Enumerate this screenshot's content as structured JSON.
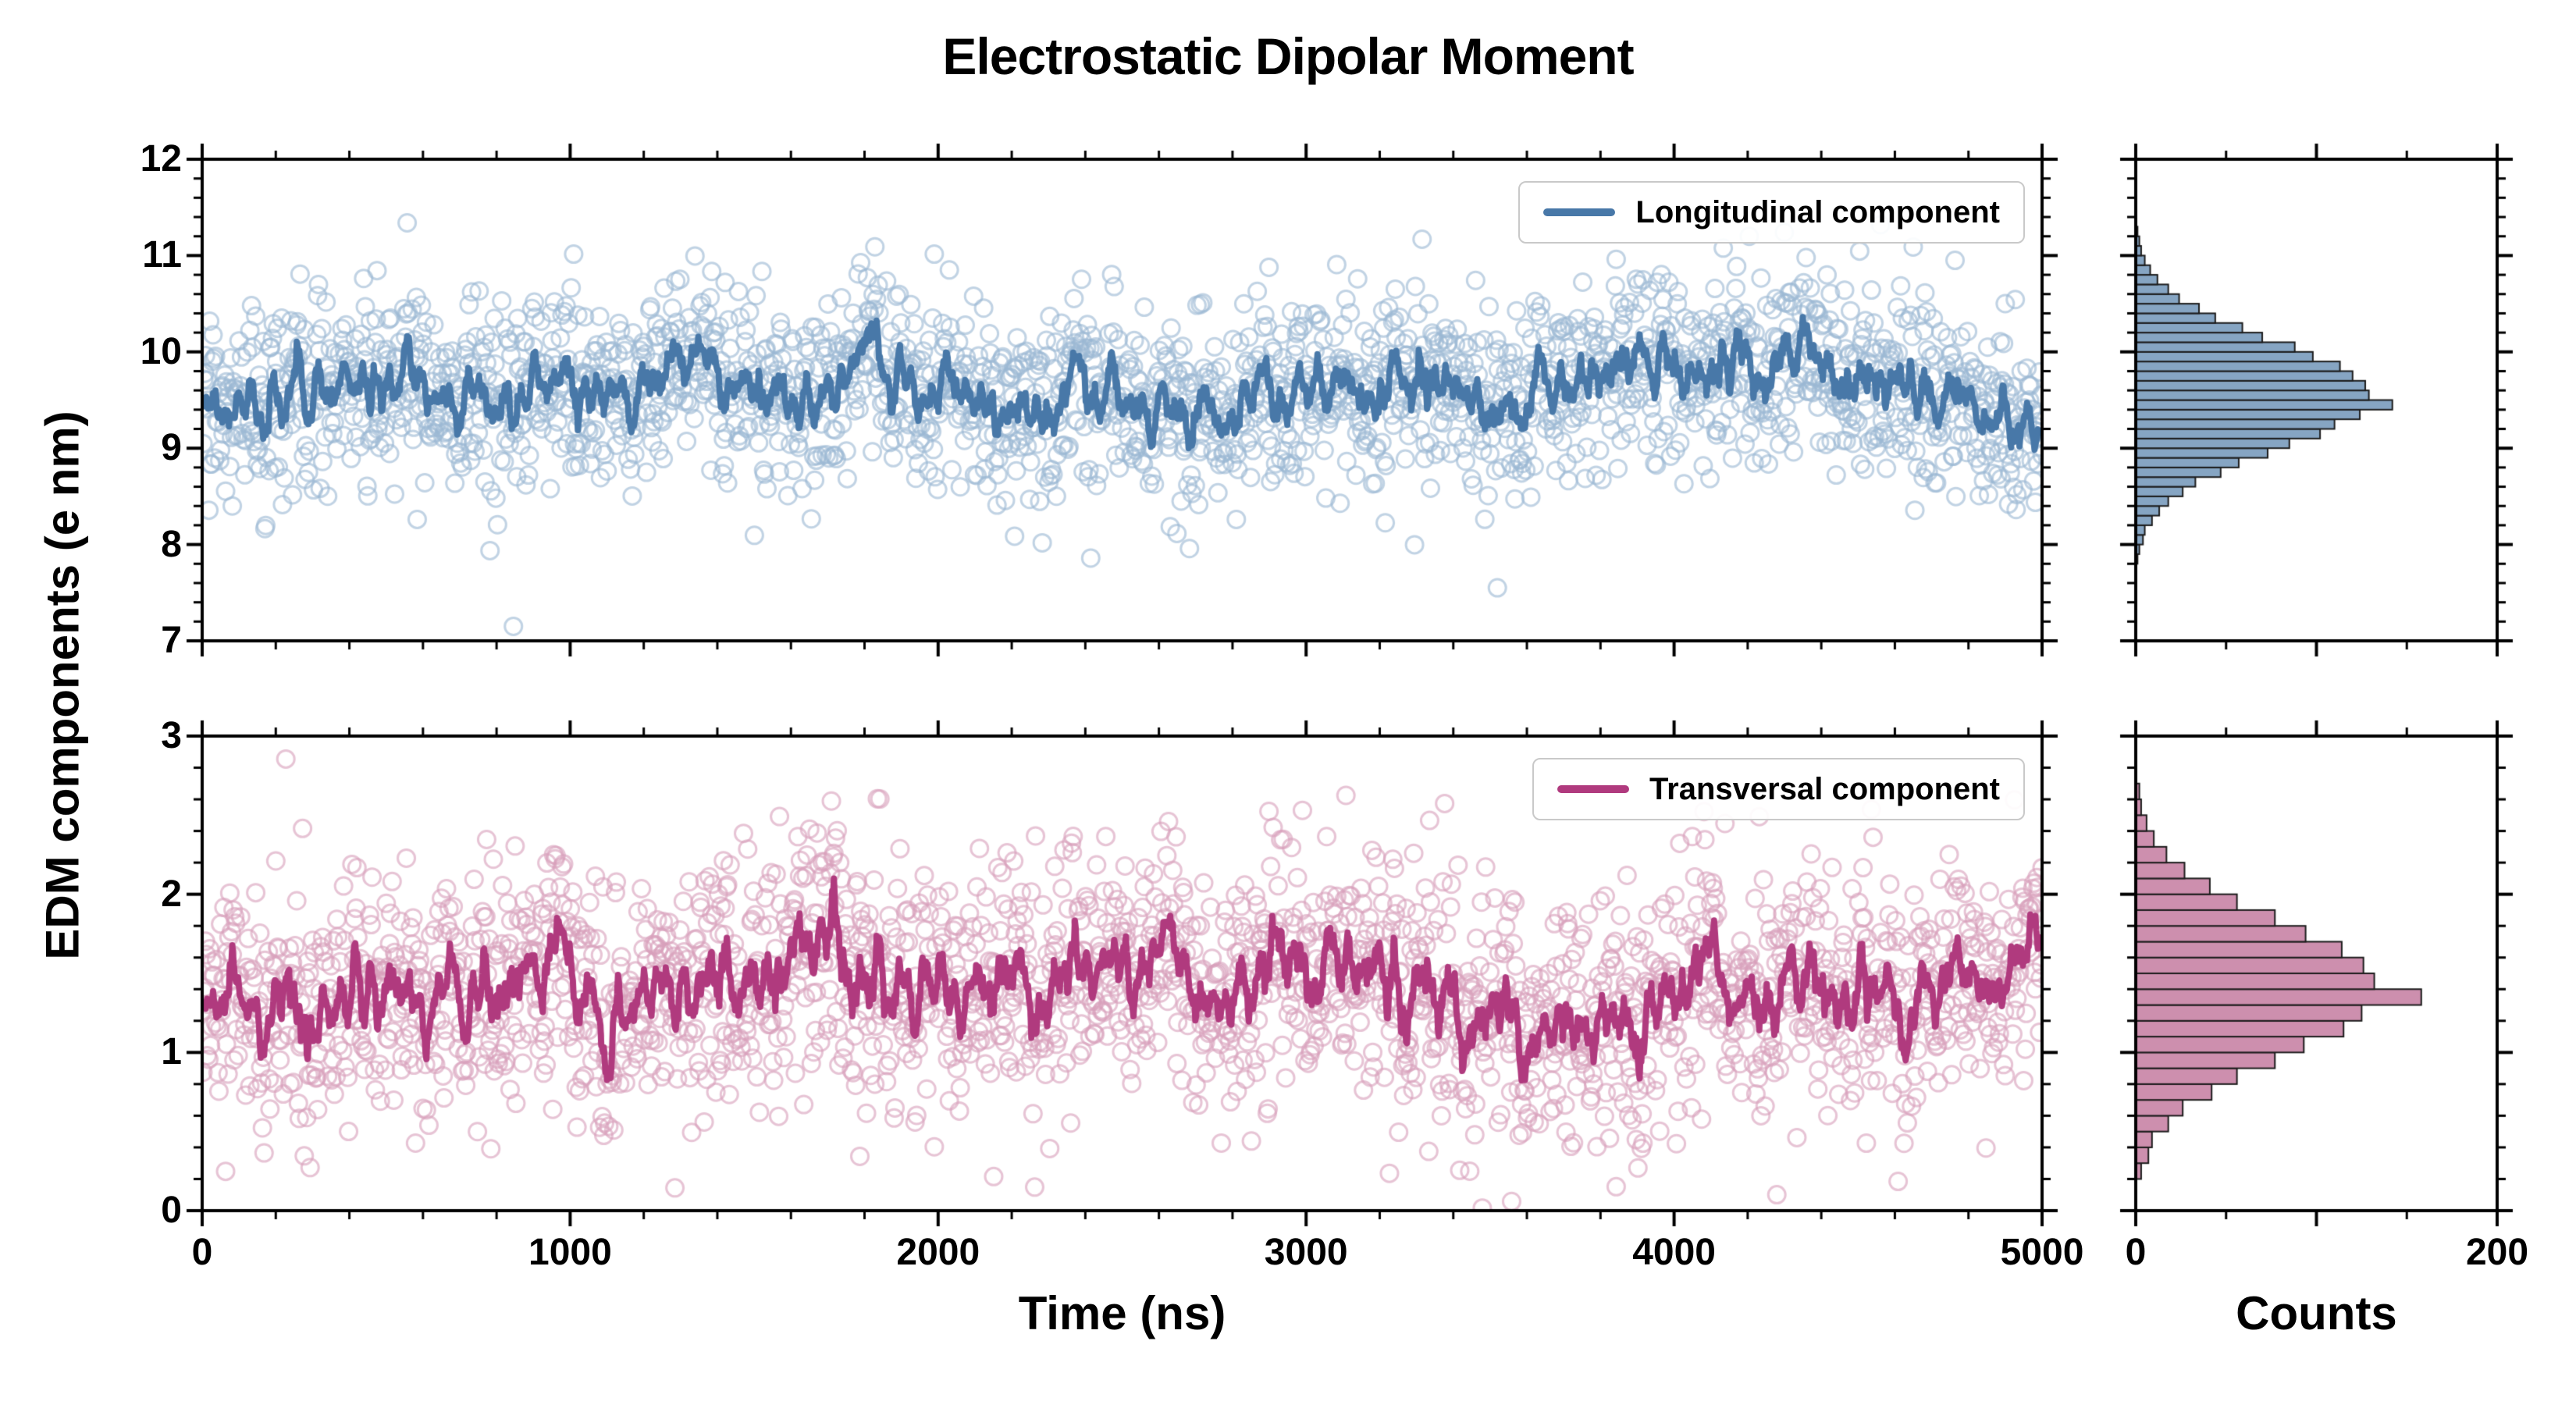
{
  "figure": {
    "title": "Electrostatic Dipolar Moment",
    "ylabel": "EDM components (e nm)",
    "xlabel_time": "Time (ns)",
    "xlabel_counts": "Counts",
    "background": "#ffffff",
    "text_color": "#000000",
    "spine_color": "#000000"
  },
  "chart_data": [
    {
      "id": "longitudinal-timeseries",
      "type": "scatter",
      "panel": "top-left",
      "legend": "Longitudinal component",
      "legend_position": "upper right",
      "xlim": [
        0,
        5000
      ],
      "ylim": [
        7,
        12
      ],
      "xticks": [
        0,
        1000,
        2000,
        3000,
        4000,
        5000
      ],
      "yticks": [
        7,
        8,
        9,
        10,
        11,
        12
      ],
      "ytick_labels": [
        "7",
        "8",
        "9",
        "10",
        "11",
        "12"
      ],
      "xminor_step": 200,
      "yminor_step": 0.2,
      "series": [
        {
          "name": "Longitudinal component samples",
          "marker": "open-circle",
          "color": "#9bb8d4",
          "n_points": 2200,
          "mean": 9.6,
          "noise_std": 0.5,
          "slow_std": 0.22,
          "autocorr": 0.985,
          "seed": 1337,
          "observed_range": [
            7.7,
            11.5
          ]
        },
        {
          "name": "Longitudinal component running average",
          "marker": "line",
          "color": "#4878a8",
          "line_width": 8,
          "smoothing_window": 9,
          "observed_range": [
            8.6,
            10.45
          ]
        }
      ]
    },
    {
      "id": "transversal-timeseries",
      "type": "scatter",
      "panel": "bottom-left",
      "legend": "Transversal component",
      "legend_position": "upper right",
      "xlim": [
        0,
        5000
      ],
      "ylim": [
        0,
        3
      ],
      "xticks": [
        0,
        1000,
        2000,
        3000,
        4000,
        5000
      ],
      "xtick_labels": [
        "0",
        "1000",
        "2000",
        "3000",
        "4000",
        "5000"
      ],
      "yticks": [
        0,
        1,
        2,
        3
      ],
      "ytick_labels": [
        "0",
        "1",
        "2",
        "3"
      ],
      "xminor_step": 200,
      "yminor_step": 0.2,
      "series": [
        {
          "name": "Transversal component samples",
          "marker": "open-circle",
          "color": "#d8a0bc",
          "n_points": 2200,
          "mean": 1.42,
          "noise_std": 0.4,
          "slow_std": 0.15,
          "autocorr": 0.985,
          "seed": 4242,
          "observed_range": [
            0.25,
            2.75
          ]
        },
        {
          "name": "Transversal component running average",
          "marker": "line",
          "color": "#b03a7e",
          "line_width": 8,
          "smoothing_window": 9,
          "observed_range": [
            0.85,
            1.95
          ]
        }
      ]
    },
    {
      "id": "longitudinal-histogram",
      "type": "bar",
      "orientation": "horizontal",
      "panel": "top-right",
      "xlim": [
        0,
        200
      ],
      "xticks": [
        0,
        100,
        200
      ],
      "ylim": [
        7,
        12
      ],
      "yticks": [
        7,
        8,
        9,
        10,
        11,
        12
      ],
      "xminor_step": 50,
      "yminor_step": 0.2,
      "bin_start": 7.8,
      "bin_width": 0.1,
      "fill": "#86a5c3",
      "edge": "#1c1c1c",
      "counts": [
        1,
        2,
        4,
        5,
        9,
        13,
        18,
        26,
        33,
        47,
        57,
        73,
        85,
        102,
        110,
        124,
        142,
        129,
        127,
        120,
        113,
        98,
        88,
        70,
        59,
        44,
        35,
        24,
        18,
        12,
        8,
        5,
        3,
        2,
        1
      ]
    },
    {
      "id": "transversal-histogram",
      "type": "bar",
      "orientation": "horizontal",
      "panel": "bottom-right",
      "xlim": [
        0,
        200
      ],
      "xticks": [
        0,
        100,
        200
      ],
      "xtick_labels": [
        "0",
        "",
        "200"
      ],
      "ylim": [
        0,
        3
      ],
      "yticks": [
        0,
        1,
        2,
        3
      ],
      "xminor_step": 50,
      "yminor_step": 0.2,
      "bin_start": 0.2,
      "bin_width": 0.1,
      "fill": "#cd8fae",
      "edge": "#1c1c1c",
      "counts": [
        3,
        7,
        9,
        18,
        26,
        42,
        56,
        77,
        93,
        115,
        125,
        158,
        132,
        126,
        114,
        94,
        77,
        56,
        41,
        27,
        17,
        10,
        6,
        3,
        2
      ]
    }
  ]
}
